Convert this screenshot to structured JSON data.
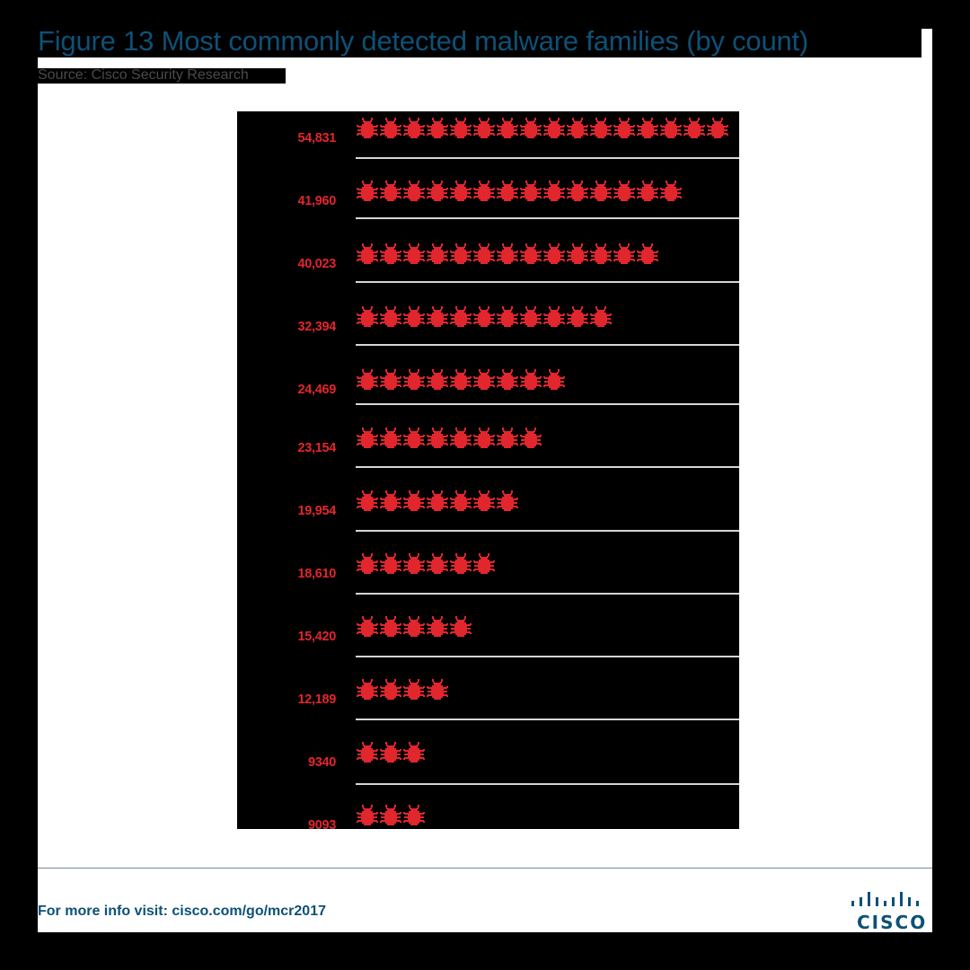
{
  "header": {
    "title": "Figure 13  Most commonly detected malware families (by count)",
    "source": "Source: Cisco Security Research"
  },
  "footer": {
    "link_text": "For more info visit: cisco.com/go/mcr2017",
    "logo_text": "CISCO"
  },
  "colors": {
    "title": "#0d5177",
    "bug": "#e1262d",
    "label": "#e1262d",
    "chart_bg": "#000000",
    "divider": "#d6d6d6"
  },
  "icon": "bug-icon",
  "chart_data": {
    "type": "bar",
    "subtype": "pictograph",
    "title": "Figure 13  Most commonly detected malware families (by count)",
    "subtitle": "Source: Cisco Security Research",
    "xlabel": "",
    "ylabel": "",
    "categories": [
      "54,831",
      "41,960",
      "40,023",
      "32,394",
      "24,469",
      "23,154",
      "19,954",
      "18,610",
      "15,420",
      "12,189",
      "9340",
      "9093"
    ],
    "values": [
      54831,
      41960,
      40023,
      32394,
      24469,
      23154,
      19954,
      18610,
      15420,
      12189,
      9340,
      9093
    ],
    "icon_counts": [
      16,
      14,
      13,
      11,
      9,
      8,
      7,
      6,
      5,
      4,
      3,
      3
    ],
    "grid": false,
    "legend": null
  },
  "rows": [
    {
      "label": "54,831",
      "count": 16
    },
    {
      "label": "41,960",
      "count": 14
    },
    {
      "label": "40,023",
      "count": 13
    },
    {
      "label": "32,394",
      "count": 11
    },
    {
      "label": "24,469",
      "count": 9
    },
    {
      "label": "23,154",
      "count": 8
    },
    {
      "label": "19,954",
      "count": 7
    },
    {
      "label": "18,610",
      "count": 6
    },
    {
      "label": "15,420",
      "count": 5
    },
    {
      "label": "12,189",
      "count": 4
    },
    {
      "label": "9340",
      "count": 3
    },
    {
      "label": "9093",
      "count": 3
    }
  ]
}
